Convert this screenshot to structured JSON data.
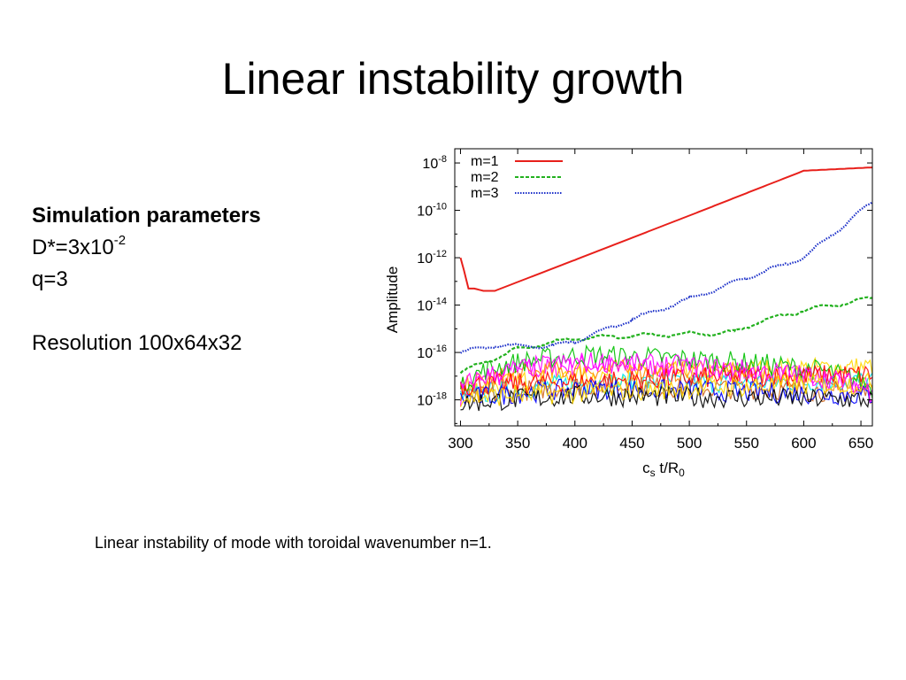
{
  "slide": {
    "title": "Linear instability growth",
    "params_heading": "Simulation parameters",
    "d_label": "D*=3x10",
    "d_exponent": "-2",
    "q_label": "q=3",
    "resolution": "Resolution 100x64x32",
    "caption": "Linear instability of mode with toroidal wavenumber n=1."
  },
  "chart_data": {
    "type": "line",
    "xlabel": "c_s t/R_0",
    "ylabel": "Amplitude",
    "xlim": [
      295,
      660
    ],
    "ylim_log10": [
      -19.1,
      -7.4
    ],
    "yscale": "log",
    "grid": false,
    "legend_position": "top-left",
    "x_ticks": [
      300,
      350,
      400,
      450,
      500,
      550,
      600,
      650
    ],
    "y_ticks_exponents": [
      -8,
      -10,
      -12,
      -14,
      -16,
      -18
    ],
    "series": [
      {
        "name": "m=1",
        "color": "#e8201b",
        "dash": "solid",
        "points": [
          [
            300,
            1e-12
          ],
          [
            303,
            3e-13
          ],
          [
            307,
            5e-14
          ],
          [
            312,
            5e-14
          ],
          [
            320,
            4e-14
          ],
          [
            330,
            4e-14
          ],
          [
            400,
            8e-13
          ],
          [
            500,
            6e-11
          ],
          [
            600,
            4.7e-09
          ],
          [
            660,
            6.5e-09
          ]
        ]
      },
      {
        "name": "m=2",
        "color": "#23b11f",
        "dash": "dashed",
        "points": [
          [
            300,
            1.5e-17
          ],
          [
            350,
            1.4e-16
          ],
          [
            400,
            4e-16
          ],
          [
            450,
            5e-16
          ],
          [
            500,
            6e-16
          ],
          [
            540,
            7e-16
          ],
          [
            560,
            2e-15
          ],
          [
            600,
            6e-15
          ],
          [
            660,
            2e-14
          ]
        ]
      },
      {
        "name": "m=3",
        "color": "#1b2fc8",
        "dash": "dotted",
        "points": [
          [
            300,
            1e-16
          ],
          [
            330,
            2e-16
          ],
          [
            380,
            1.8e-16
          ],
          [
            400,
            3e-16
          ],
          [
            450,
            2.5e-15
          ],
          [
            500,
            1.8e-14
          ],
          [
            550,
            1.4e-13
          ],
          [
            600,
            1e-12
          ],
          [
            660,
            2.2e-10
          ]
        ]
      }
    ],
    "noise_colors": [
      "#ff00ff",
      "#ffd700",
      "#00e5ee",
      "#ff8c00",
      "#d2691e",
      "#00c000",
      "#ff0000",
      "#0000ff",
      "#000000"
    ]
  }
}
